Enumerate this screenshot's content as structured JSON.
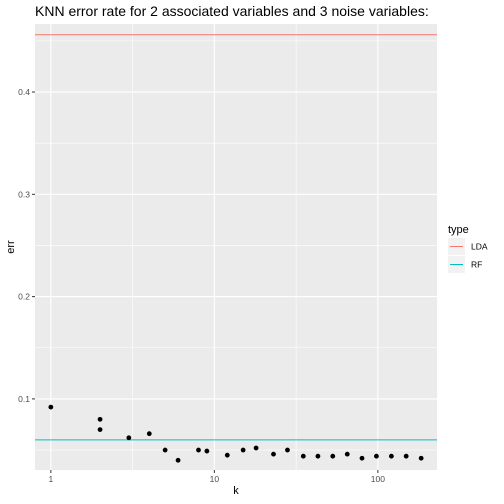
{
  "chart_data": {
    "type": "scatter",
    "title": "KNN error rate for 2 associated variables and 3 noise variables:",
    "xlabel": "k",
    "ylabel": "err",
    "xscale": "log10",
    "xlim": [
      0.8,
      230
    ],
    "ylim": [
      0.0305,
      0.4665
    ],
    "x_ticks": [
      1,
      10,
      100
    ],
    "x_tick_labels": [
      "1",
      "10",
      "100"
    ],
    "y_ticks": [
      0.1,
      0.2,
      0.3,
      0.4
    ],
    "y_tick_labels": [
      "0.1",
      "0.2",
      "0.3",
      "0.4"
    ],
    "grid": true,
    "points": {
      "x": [
        1,
        2,
        2,
        3,
        4,
        5,
        6,
        8,
        9,
        12,
        15,
        18,
        23,
        28,
        35,
        43,
        53,
        65,
        80,
        98,
        121,
        149,
        184
      ],
      "y": [
        0.092,
        0.08,
        0.07,
        0.062,
        0.066,
        0.05,
        0.04,
        0.05,
        0.049,
        0.045,
        0.05,
        0.052,
        0.046,
        0.05,
        0.044,
        0.044,
        0.044,
        0.046,
        0.042,
        0.044,
        0.044,
        0.044,
        0.042
      ],
      "color": "#000000"
    },
    "hlines": [
      {
        "name": "LDA",
        "value": 0.456,
        "color": "#F8766D"
      },
      {
        "name": "RF",
        "value": 0.06,
        "color": "#00BFC4"
      }
    ],
    "legend": {
      "title": "type",
      "position": "right",
      "entries": [
        {
          "label": "LDA",
          "color": "#F8766D"
        },
        {
          "label": "RF",
          "color": "#00BFC4"
        }
      ]
    }
  }
}
